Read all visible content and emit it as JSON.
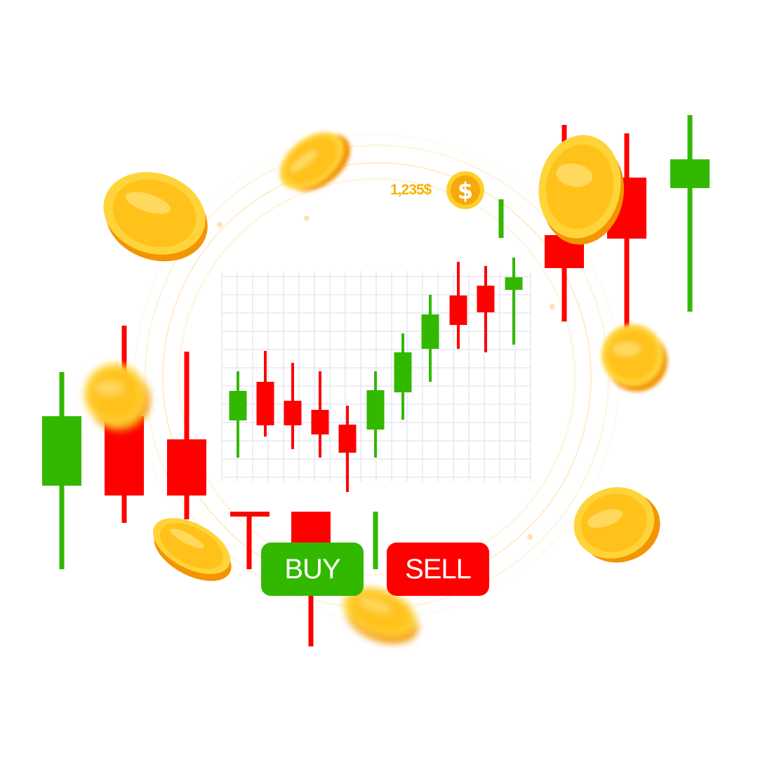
{
  "colors": {
    "up": "#33b800",
    "down": "#ff0000",
    "coin": "#ffc21a",
    "coin_dark": "#f29500",
    "grid": "#dfe3ee"
  },
  "balance": {
    "amount": "1,235$",
    "icon": "dollar-coin-icon",
    "coin_symbol": "$"
  },
  "actions": {
    "buy_label": "BUY",
    "sell_label": "SELL"
  },
  "decor": {
    "coin_icon": "gold-coin-icon",
    "candle_icon": "candlestick-icon"
  }
}
